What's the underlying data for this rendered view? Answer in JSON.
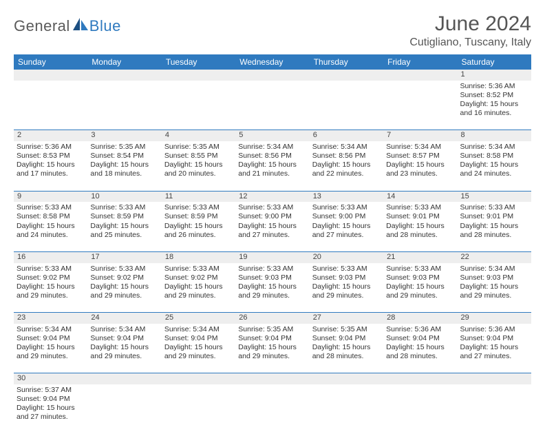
{
  "brand": {
    "part1": "General",
    "part2": "Blue",
    "color1": "#5a5a5a",
    "color2": "#2f7abf"
  },
  "title": "June 2024",
  "location": "Cutigliano, Tuscany, Italy",
  "colors": {
    "header_bg": "#2f7abf",
    "header_fg": "#ffffff",
    "daynum_bg": "#eeeeee",
    "border": "#2f7abf"
  },
  "weekdays": [
    "Sunday",
    "Monday",
    "Tuesday",
    "Wednesday",
    "Thursday",
    "Friday",
    "Saturday"
  ],
  "weeks": [
    [
      null,
      null,
      null,
      null,
      null,
      null,
      {
        "n": "1",
        "sr": "Sunrise: 5:36 AM",
        "ss": "Sunset: 8:52 PM",
        "dl": "Daylight: 15 hours and 16 minutes."
      }
    ],
    [
      {
        "n": "2",
        "sr": "Sunrise: 5:36 AM",
        "ss": "Sunset: 8:53 PM",
        "dl": "Daylight: 15 hours and 17 minutes."
      },
      {
        "n": "3",
        "sr": "Sunrise: 5:35 AM",
        "ss": "Sunset: 8:54 PM",
        "dl": "Daylight: 15 hours and 18 minutes."
      },
      {
        "n": "4",
        "sr": "Sunrise: 5:35 AM",
        "ss": "Sunset: 8:55 PM",
        "dl": "Daylight: 15 hours and 20 minutes."
      },
      {
        "n": "5",
        "sr": "Sunrise: 5:34 AM",
        "ss": "Sunset: 8:56 PM",
        "dl": "Daylight: 15 hours and 21 minutes."
      },
      {
        "n": "6",
        "sr": "Sunrise: 5:34 AM",
        "ss": "Sunset: 8:56 PM",
        "dl": "Daylight: 15 hours and 22 minutes."
      },
      {
        "n": "7",
        "sr": "Sunrise: 5:34 AM",
        "ss": "Sunset: 8:57 PM",
        "dl": "Daylight: 15 hours and 23 minutes."
      },
      {
        "n": "8",
        "sr": "Sunrise: 5:34 AM",
        "ss": "Sunset: 8:58 PM",
        "dl": "Daylight: 15 hours and 24 minutes."
      }
    ],
    [
      {
        "n": "9",
        "sr": "Sunrise: 5:33 AM",
        "ss": "Sunset: 8:58 PM",
        "dl": "Daylight: 15 hours and 24 minutes."
      },
      {
        "n": "10",
        "sr": "Sunrise: 5:33 AM",
        "ss": "Sunset: 8:59 PM",
        "dl": "Daylight: 15 hours and 25 minutes."
      },
      {
        "n": "11",
        "sr": "Sunrise: 5:33 AM",
        "ss": "Sunset: 8:59 PM",
        "dl": "Daylight: 15 hours and 26 minutes."
      },
      {
        "n": "12",
        "sr": "Sunrise: 5:33 AM",
        "ss": "Sunset: 9:00 PM",
        "dl": "Daylight: 15 hours and 27 minutes."
      },
      {
        "n": "13",
        "sr": "Sunrise: 5:33 AM",
        "ss": "Sunset: 9:00 PM",
        "dl": "Daylight: 15 hours and 27 minutes."
      },
      {
        "n": "14",
        "sr": "Sunrise: 5:33 AM",
        "ss": "Sunset: 9:01 PM",
        "dl": "Daylight: 15 hours and 28 minutes."
      },
      {
        "n": "15",
        "sr": "Sunrise: 5:33 AM",
        "ss": "Sunset: 9:01 PM",
        "dl": "Daylight: 15 hours and 28 minutes."
      }
    ],
    [
      {
        "n": "16",
        "sr": "Sunrise: 5:33 AM",
        "ss": "Sunset: 9:02 PM",
        "dl": "Daylight: 15 hours and 29 minutes."
      },
      {
        "n": "17",
        "sr": "Sunrise: 5:33 AM",
        "ss": "Sunset: 9:02 PM",
        "dl": "Daylight: 15 hours and 29 minutes."
      },
      {
        "n": "18",
        "sr": "Sunrise: 5:33 AM",
        "ss": "Sunset: 9:02 PM",
        "dl": "Daylight: 15 hours and 29 minutes."
      },
      {
        "n": "19",
        "sr": "Sunrise: 5:33 AM",
        "ss": "Sunset: 9:03 PM",
        "dl": "Daylight: 15 hours and 29 minutes."
      },
      {
        "n": "20",
        "sr": "Sunrise: 5:33 AM",
        "ss": "Sunset: 9:03 PM",
        "dl": "Daylight: 15 hours and 29 minutes."
      },
      {
        "n": "21",
        "sr": "Sunrise: 5:33 AM",
        "ss": "Sunset: 9:03 PM",
        "dl": "Daylight: 15 hours and 29 minutes."
      },
      {
        "n": "22",
        "sr": "Sunrise: 5:34 AM",
        "ss": "Sunset: 9:03 PM",
        "dl": "Daylight: 15 hours and 29 minutes."
      }
    ],
    [
      {
        "n": "23",
        "sr": "Sunrise: 5:34 AM",
        "ss": "Sunset: 9:04 PM",
        "dl": "Daylight: 15 hours and 29 minutes."
      },
      {
        "n": "24",
        "sr": "Sunrise: 5:34 AM",
        "ss": "Sunset: 9:04 PM",
        "dl": "Daylight: 15 hours and 29 minutes."
      },
      {
        "n": "25",
        "sr": "Sunrise: 5:34 AM",
        "ss": "Sunset: 9:04 PM",
        "dl": "Daylight: 15 hours and 29 minutes."
      },
      {
        "n": "26",
        "sr": "Sunrise: 5:35 AM",
        "ss": "Sunset: 9:04 PM",
        "dl": "Daylight: 15 hours and 29 minutes."
      },
      {
        "n": "27",
        "sr": "Sunrise: 5:35 AM",
        "ss": "Sunset: 9:04 PM",
        "dl": "Daylight: 15 hours and 28 minutes."
      },
      {
        "n": "28",
        "sr": "Sunrise: 5:36 AM",
        "ss": "Sunset: 9:04 PM",
        "dl": "Daylight: 15 hours and 28 minutes."
      },
      {
        "n": "29",
        "sr": "Sunrise: 5:36 AM",
        "ss": "Sunset: 9:04 PM",
        "dl": "Daylight: 15 hours and 27 minutes."
      }
    ],
    [
      {
        "n": "30",
        "sr": "Sunrise: 5:37 AM",
        "ss": "Sunset: 9:04 PM",
        "dl": "Daylight: 15 hours and 27 minutes."
      },
      null,
      null,
      null,
      null,
      null,
      null
    ]
  ]
}
